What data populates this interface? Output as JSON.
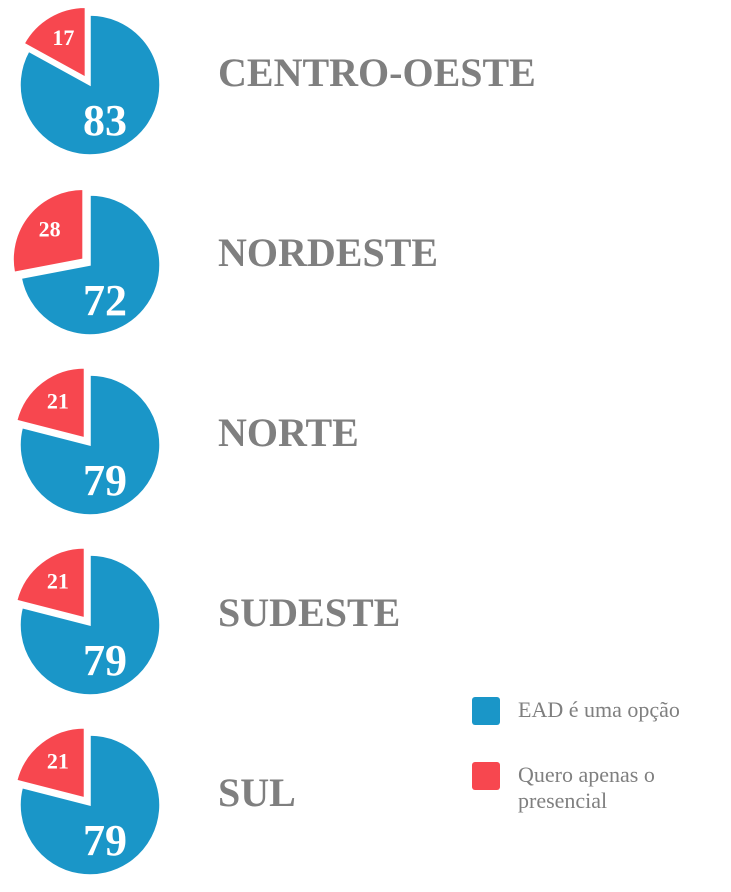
{
  "legend": {
    "items": [
      {
        "label": "EAD é uma opção",
        "color": "#1a96c8"
      },
      {
        "label": "Quero apenas o presencial",
        "color": "#f7474f"
      }
    ]
  },
  "chart_data": [
    {
      "type": "pie",
      "title": "CENTRO-OESTE",
      "values": [
        83,
        17
      ]
    },
    {
      "type": "pie",
      "title": "NORDESTE",
      "values": [
        72,
        28
      ]
    },
    {
      "type": "pie",
      "title": "NORTE",
      "values": [
        79,
        21
      ]
    },
    {
      "type": "pie",
      "title": "SUDESTE",
      "values": [
        79,
        21
      ]
    },
    {
      "type": "pie",
      "title": "SUL",
      "values": [
        79,
        21
      ]
    }
  ]
}
